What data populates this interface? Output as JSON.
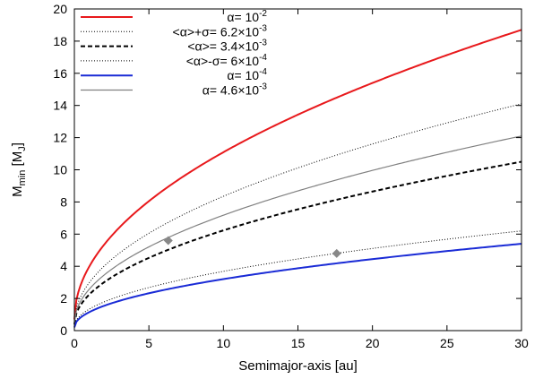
{
  "chart_data": {
    "type": "line",
    "xlabel": "Semimajor-axis [au]",
    "ylabel_main": "M",
    "ylabel_sub": "min",
    "ylabel_unit": " [M",
    "ylabel_unit_sub": "J",
    "ylabel_close": "]",
    "xlim": [
      0,
      30
    ],
    "ylim": [
      0,
      20
    ],
    "x_ticks": [
      0,
      5,
      10,
      15,
      20,
      25,
      30
    ],
    "y_ticks": [
      0,
      2,
      4,
      6,
      8,
      10,
      12,
      14,
      16,
      18,
      20
    ],
    "grid": false,
    "legend_position": "top-left",
    "x_curve_start": 0,
    "series": [
      {
        "name_prefix": "α= 10",
        "name_exp": "-2",
        "name_suffix": "",
        "end_value": 18.7,
        "start_value": 0.7,
        "color": "#e8191c",
        "style": "solid"
      },
      {
        "name_prefix": "<α>+σ= 6.2×10",
        "name_exp": "-3",
        "name_suffix": "",
        "end_value": 14.1,
        "start_value": 0.5,
        "color": "#000000",
        "style": "dotted"
      },
      {
        "name_prefix": "<α>= 3.4×10",
        "name_exp": "-3",
        "name_suffix": "",
        "end_value": 10.5,
        "start_value": 0.4,
        "color": "#000000",
        "style": "dashed"
      },
      {
        "name_prefix": "<α>-σ= 6×10",
        "name_exp": "-4",
        "name_suffix": "",
        "end_value": 6.2,
        "start_value": 0.25,
        "color": "#000000",
        "style": "dotted"
      },
      {
        "name_prefix": "α= 10",
        "name_exp": "-4",
        "name_suffix": "",
        "end_value": 5.4,
        "start_value": 0.2,
        "color": "#1a2bd6",
        "style": "solid"
      },
      {
        "name_prefix": "α= 4.6×10",
        "name_exp": "-3",
        "name_suffix": "",
        "end_value": 12.1,
        "start_value": 0.45,
        "color": "#808080",
        "style": "solid"
      }
    ],
    "markers": [
      {
        "x": 6.3,
        "y": 5.6,
        "color": "#888888",
        "shape": "diamond"
      },
      {
        "x": 17.6,
        "y": 4.8,
        "color": "#888888",
        "shape": "diamond"
      }
    ]
  }
}
